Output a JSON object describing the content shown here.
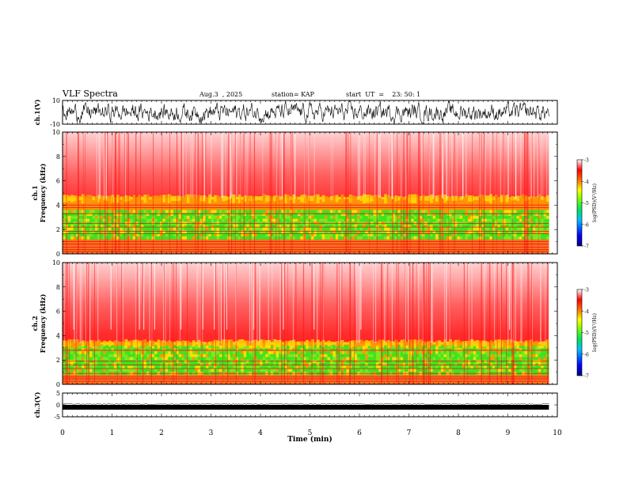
{
  "header": {
    "title": "VLF Spectra",
    "date": "Aug.3  , 2025",
    "station": "station= KAP",
    "start": "start  UT  =    23: 50: 1"
  },
  "chart_data": {
    "type": "spectrogram",
    "xlabel": "Time  (min)",
    "xlim": [
      0,
      10
    ],
    "xticks": [
      "0",
      "1",
      "2",
      "3",
      "4",
      "5",
      "6",
      "7",
      "8",
      "9",
      "10"
    ],
    "data_end_min": 9.83,
    "panels": {
      "ch1_wave": {
        "ylabel": "ch.1(V)",
        "yticks": [
          "10",
          "-10"
        ],
        "ylim": [
          -10,
          10
        ]
      },
      "ch1_spec": {
        "ylabel_line1": "ch.1",
        "ylabel_line2": "Frequency  (kHz)",
        "yticks": [
          "0",
          "2",
          "4",
          "6",
          "8",
          "10"
        ],
        "ylim": [
          0,
          10
        ],
        "green_band_khz": [
          1.2,
          3.6
        ],
        "yellow_edge_khz": 4.6,
        "lines_khz": [
          0.2,
          0.35,
          0.55,
          0.8,
          1.0,
          1.65,
          1.85,
          2.2,
          2.5,
          3.3,
          3.8,
          4.0
        ]
      },
      "ch2_spec": {
        "ylabel_line1": "ch.2",
        "ylabel_line2": "Frequency  (kHz)",
        "yticks": [
          "0",
          "2",
          "4",
          "6",
          "8",
          "10"
        ],
        "ylim": [
          0,
          10
        ],
        "green_band_khz": [
          0.8,
          3.2
        ],
        "yellow_edge_khz": 3.4,
        "lines_khz": [
          0.25,
          0.45,
          0.6,
          0.9,
          1.3,
          1.6,
          1.9
        ]
      },
      "ch3_wave": {
        "ylabel": "ch.3(V)",
        "yticks": [
          "5",
          "0",
          "-5"
        ],
        "ylim": [
          -5,
          5
        ],
        "offset_v": -1.0
      }
    },
    "colorbar": {
      "label": "log(PSD)(V²/Hz)",
      "ticks": [
        "-3",
        "-4",
        "-5",
        "-6",
        "-7"
      ],
      "range": [
        -7,
        -3
      ]
    }
  },
  "colors": {
    "red": "#ff2020",
    "yellow": "#ffe000",
    "green": "#40e020",
    "axis": "#000000"
  }
}
